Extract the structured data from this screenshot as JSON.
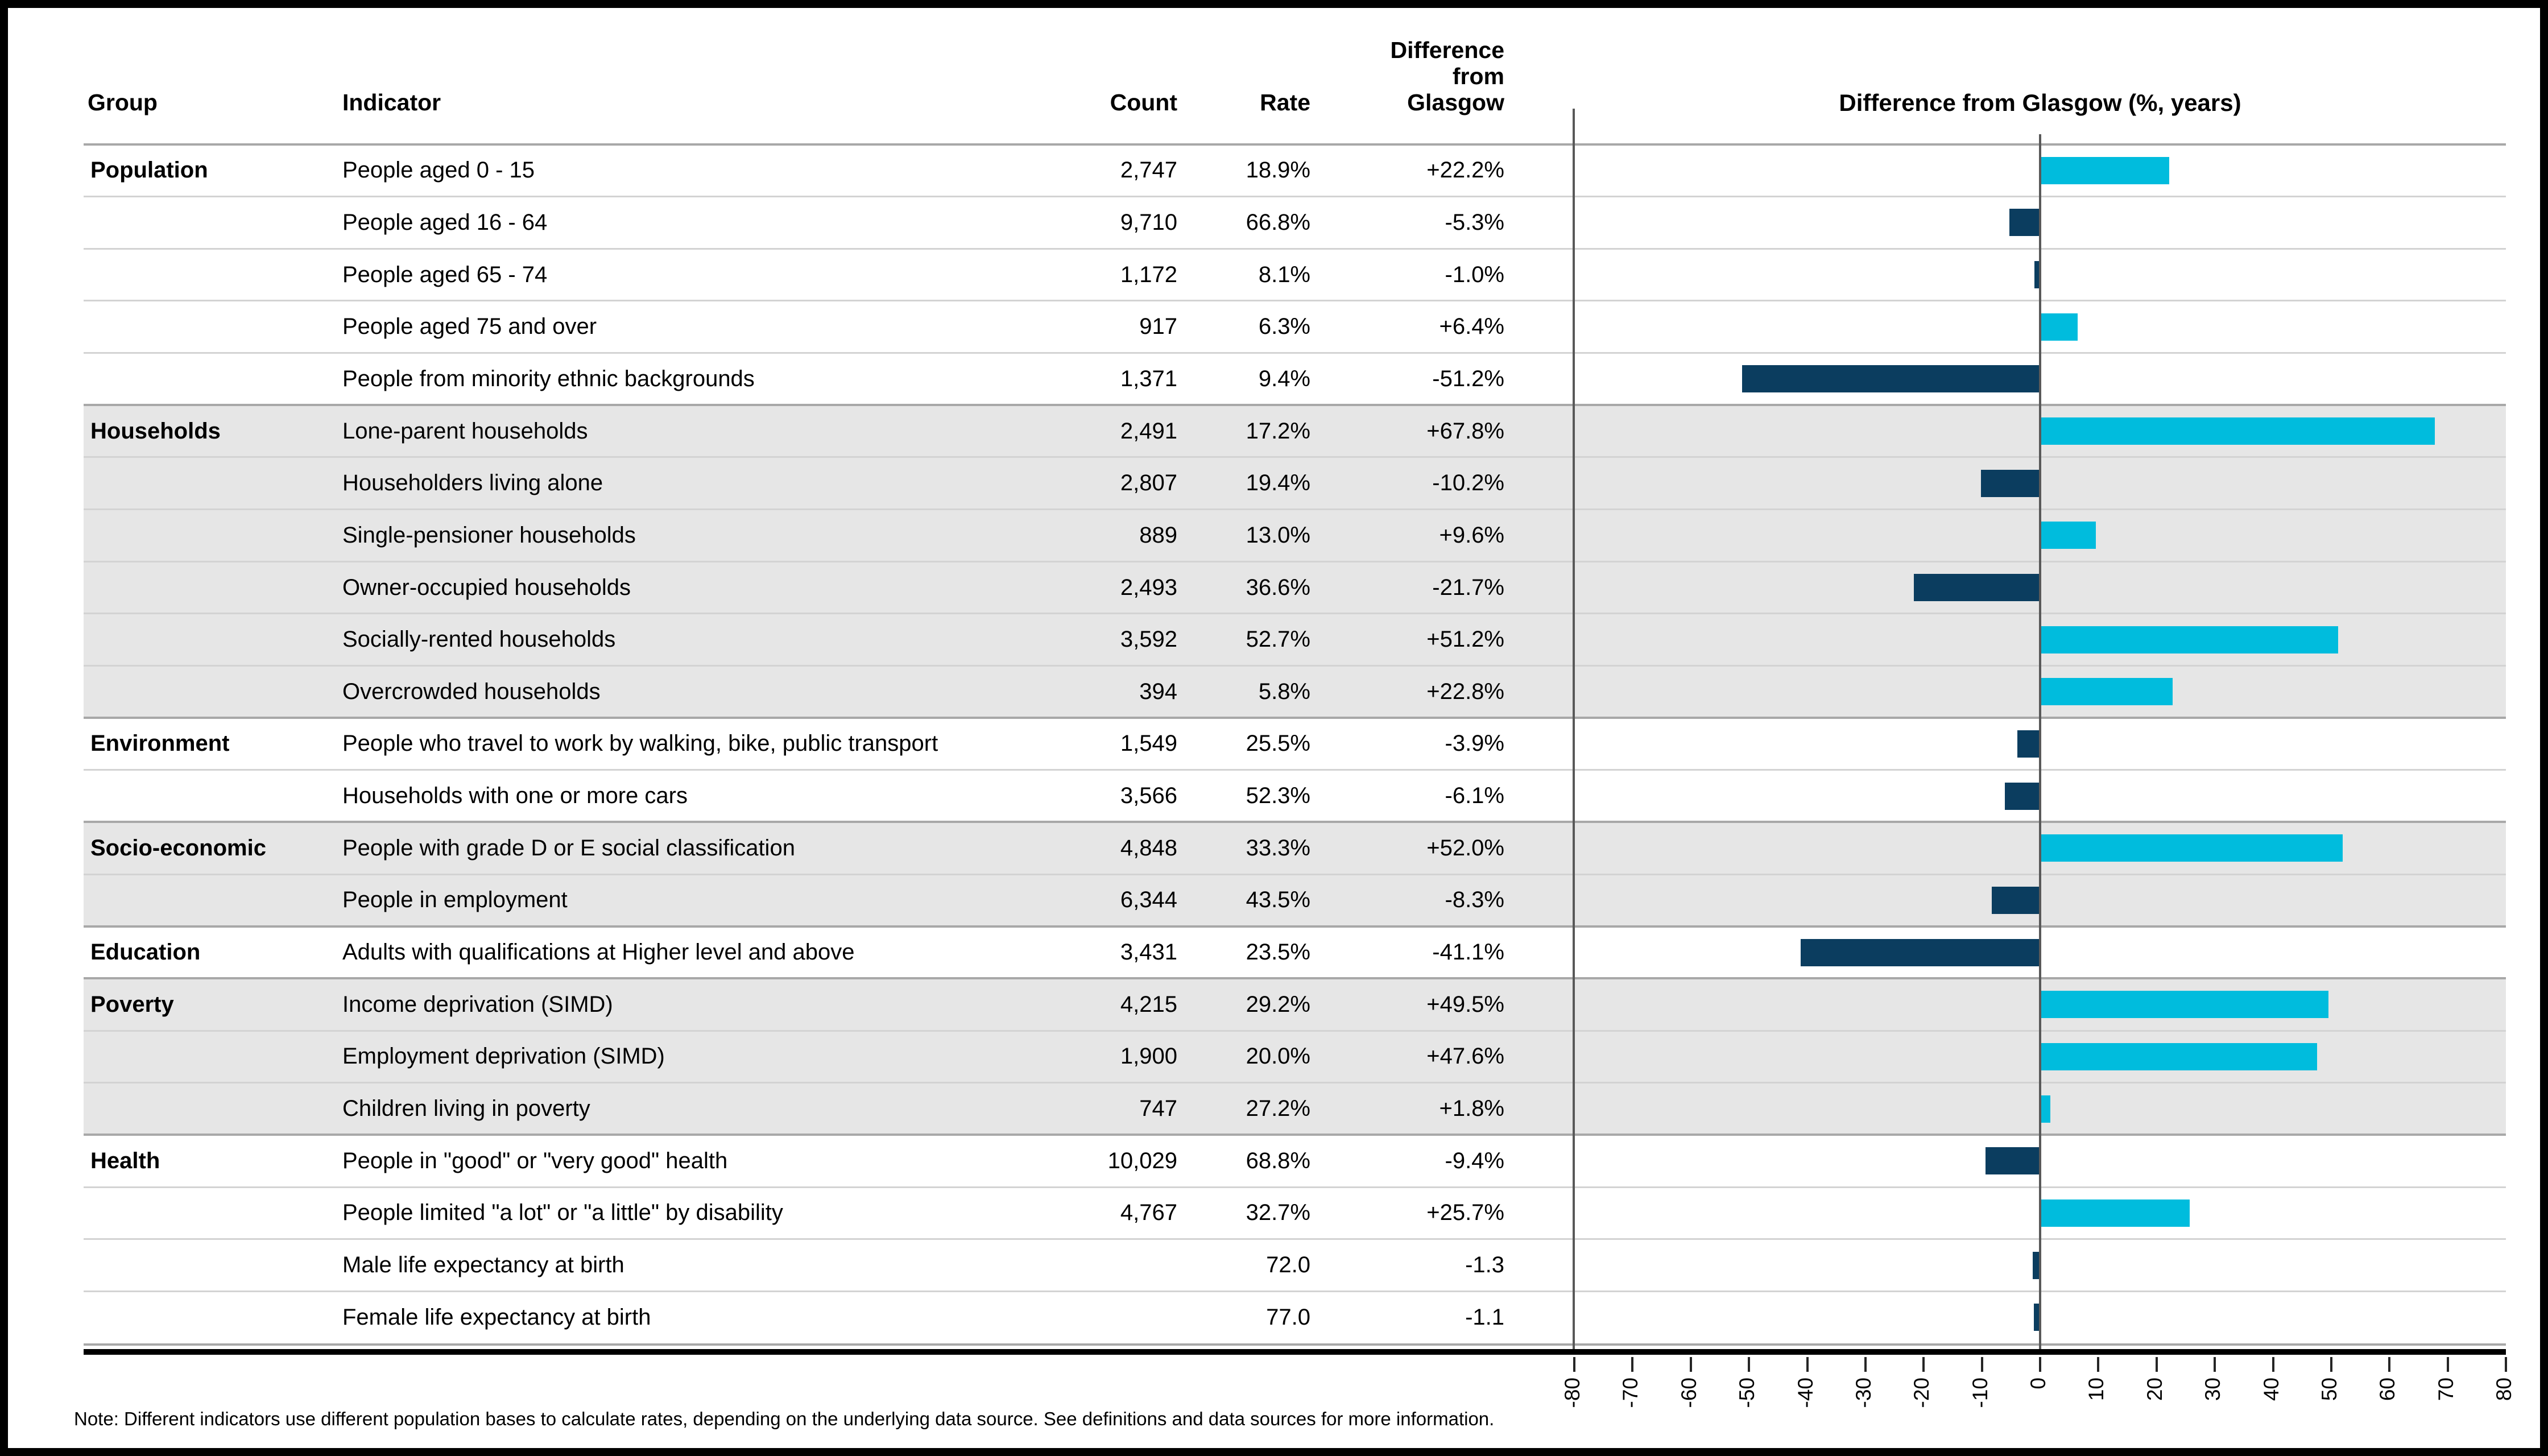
{
  "headers": {
    "group": "Group",
    "indicator": "Indicator",
    "count": "Count",
    "rate": "Rate",
    "difference_lines": [
      "Difference",
      "from",
      "Glasgow"
    ]
  },
  "chart_title": "Difference from Glasgow (%, years)",
  "note": "Note: Different indicators use different population bases to calculate rates, depending on the underlying data source. See definitions and data sources for more information.",
  "colors": {
    "positive_bar": "#00bcdd",
    "negative_bar": "#0b3d5f",
    "band_shaded": "#e6e6e6",
    "band_plain": "#ffffff",
    "grid_minor": "#d3d3d3",
    "grid_group": "#a8a8a8",
    "axis_line": "#595959"
  },
  "rows": [
    {
      "group": "Population",
      "group_start": true,
      "shaded": false,
      "indicator": "People aged 0 - 15",
      "count": "2,747",
      "rate": "18.9%",
      "diff_label": "+22.2%",
      "diff": 22.2
    },
    {
      "group": "",
      "group_start": false,
      "shaded": false,
      "indicator": "People aged 16 - 64",
      "count": "9,710",
      "rate": "66.8%",
      "diff_label": "-5.3%",
      "diff": -5.3
    },
    {
      "group": "",
      "group_start": false,
      "shaded": false,
      "indicator": "People aged 65 - 74",
      "count": "1,172",
      "rate": "8.1%",
      "diff_label": "-1.0%",
      "diff": -1.0
    },
    {
      "group": "",
      "group_start": false,
      "shaded": false,
      "indicator": "People aged 75 and over",
      "count": "917",
      "rate": "6.3%",
      "diff_label": "+6.4%",
      "diff": 6.4
    },
    {
      "group": "",
      "group_start": false,
      "shaded": false,
      "indicator": "People from minority ethnic backgrounds",
      "count": "1,371",
      "rate": "9.4%",
      "diff_label": "-51.2%",
      "diff": -51.2
    },
    {
      "group": "Households",
      "group_start": true,
      "shaded": true,
      "indicator": "Lone-parent households",
      "count": "2,491",
      "rate": "17.2%",
      "diff_label": "+67.8%",
      "diff": 67.8
    },
    {
      "group": "",
      "group_start": false,
      "shaded": true,
      "indicator": "Householders living alone",
      "count": "2,807",
      "rate": "19.4%",
      "diff_label": "-10.2%",
      "diff": -10.2
    },
    {
      "group": "",
      "group_start": false,
      "shaded": true,
      "indicator": "Single-pensioner households",
      "count": "889",
      "rate": "13.0%",
      "diff_label": "+9.6%",
      "diff": 9.6
    },
    {
      "group": "",
      "group_start": false,
      "shaded": true,
      "indicator": "Owner-occupied households",
      "count": "2,493",
      "rate": "36.6%",
      "diff_label": "-21.7%",
      "diff": -21.7
    },
    {
      "group": "",
      "group_start": false,
      "shaded": true,
      "indicator": "Socially-rented households",
      "count": "3,592",
      "rate": "52.7%",
      "diff_label": "+51.2%",
      "diff": 51.2
    },
    {
      "group": "",
      "group_start": false,
      "shaded": true,
      "indicator": "Overcrowded households",
      "count": "394",
      "rate": "5.8%",
      "diff_label": "+22.8%",
      "diff": 22.8
    },
    {
      "group": "Environment",
      "group_start": true,
      "shaded": false,
      "indicator": "People who travel to work by walking, bike, public transport",
      "count": "1,549",
      "rate": "25.5%",
      "diff_label": "-3.9%",
      "diff": -3.9
    },
    {
      "group": "",
      "group_start": false,
      "shaded": false,
      "indicator": "Households with one or more cars",
      "count": "3,566",
      "rate": "52.3%",
      "diff_label": "-6.1%",
      "diff": -6.1
    },
    {
      "group": "Socio-economic",
      "group_start": true,
      "shaded": true,
      "indicator": "People with grade D or E social classification",
      "count": "4,848",
      "rate": "33.3%",
      "diff_label": "+52.0%",
      "diff": 52.0
    },
    {
      "group": "",
      "group_start": false,
      "shaded": true,
      "indicator": "People in employment",
      "count": "6,344",
      "rate": "43.5%",
      "diff_label": "-8.3%",
      "diff": -8.3
    },
    {
      "group": "Education",
      "group_start": true,
      "shaded": false,
      "indicator": "Adults with qualifications at Higher level and above",
      "count": "3,431",
      "rate": "23.5%",
      "diff_label": "-41.1%",
      "diff": -41.1
    },
    {
      "group": "Poverty",
      "group_start": true,
      "shaded": true,
      "indicator": "Income deprivation (SIMD)",
      "count": "4,215",
      "rate": "29.2%",
      "diff_label": "+49.5%",
      "diff": 49.5
    },
    {
      "group": "",
      "group_start": false,
      "shaded": true,
      "indicator": "Employment deprivation (SIMD)",
      "count": "1,900",
      "rate": "20.0%",
      "diff_label": "+47.6%",
      "diff": 47.6
    },
    {
      "group": "",
      "group_start": false,
      "shaded": true,
      "indicator": "Children living in poverty",
      "count": "747",
      "rate": "27.2%",
      "diff_label": "+1.8%",
      "diff": 1.8
    },
    {
      "group": "Health",
      "group_start": true,
      "shaded": false,
      "indicator": "People in \"good\" or \"very good\" health",
      "count": "10,029",
      "rate": "68.8%",
      "diff_label": "-9.4%",
      "diff": -9.4
    },
    {
      "group": "",
      "group_start": false,
      "shaded": false,
      "indicator": "People limited \"a lot\" or \"a little\" by disability",
      "count": "4,767",
      "rate": "32.7%",
      "diff_label": "+25.7%",
      "diff": 25.7
    },
    {
      "group": "",
      "group_start": false,
      "shaded": false,
      "indicator": "Male life expectancy at birth",
      "count": "",
      "rate": "72.0",
      "diff_label": "-1.3",
      "diff": -1.3
    },
    {
      "group": "",
      "group_start": false,
      "shaded": false,
      "indicator": "Female life expectancy at birth",
      "count": "",
      "rate": "77.0",
      "diff_label": "-1.1",
      "diff": -1.1
    }
  ],
  "chart_data": {
    "type": "bar",
    "orientation": "horizontal",
    "title": "Difference from Glasgow (%, years)",
    "xlabel": "",
    "ylabel": "",
    "xlim": [
      -80,
      80
    ],
    "tick_step": 10,
    "tick_labels": [
      "-80",
      "-70",
      "-60",
      "-50",
      "-40",
      "-30",
      "-20",
      "-10",
      "0",
      "10",
      "20",
      "30",
      "40",
      "50",
      "60",
      "70",
      "80"
    ],
    "grid": false,
    "legend": "none",
    "categories": [
      "People aged 0 - 15",
      "People aged 16 - 64",
      "People aged 65 - 74",
      "People aged 75 and over",
      "People from minority ethnic backgrounds",
      "Lone-parent households",
      "Householders living alone",
      "Single-pensioner households",
      "Owner-occupied households",
      "Socially-rented households",
      "Overcrowded households",
      "People who travel to work by walking, bike, public transport",
      "Households with one or more cars",
      "People with grade D or E social classification",
      "People in employment",
      "Adults with qualifications at Higher level and above",
      "Income deprivation (SIMD)",
      "Employment deprivation (SIMD)",
      "Children living in poverty",
      "People in \"good\" or \"very good\" health",
      "People limited \"a lot\" or \"a little\" by disability",
      "Male life expectancy at birth",
      "Female life expectancy at birth"
    ],
    "values": [
      22.2,
      -5.3,
      -1.0,
      6.4,
      -51.2,
      67.8,
      -10.2,
      9.6,
      -21.7,
      51.2,
      22.8,
      -3.9,
      -6.1,
      52.0,
      -8.3,
      -41.1,
      49.5,
      47.6,
      1.8,
      -9.4,
      25.7,
      -1.3,
      -1.1
    ],
    "positive_color": "#00bcdd",
    "negative_color": "#0b3d5f"
  }
}
